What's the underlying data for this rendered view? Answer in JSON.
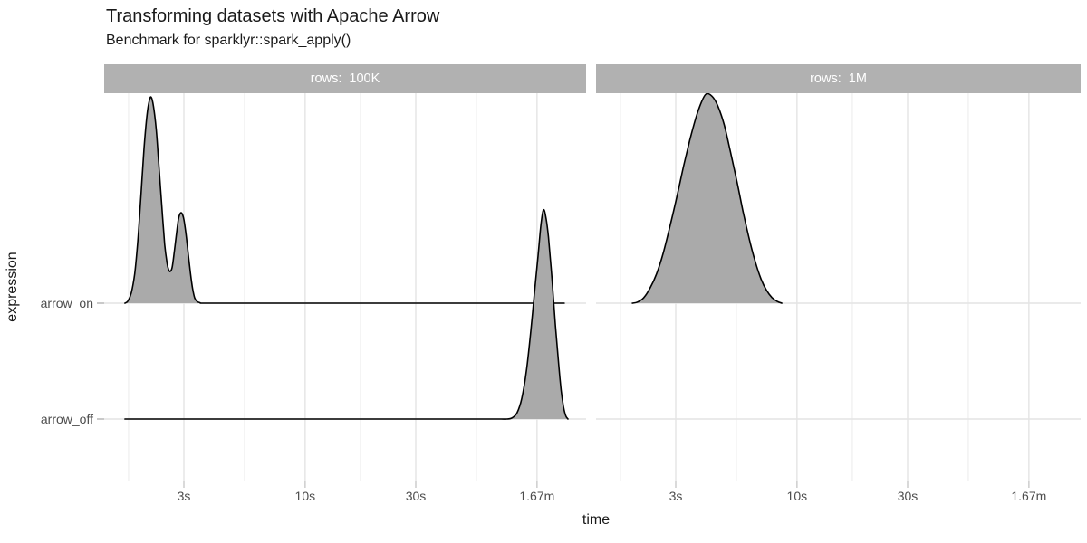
{
  "chart_data": {
    "type": "area",
    "variant": "faceted-density-ridgeline",
    "title": "Transforming datasets with Apache Arrow",
    "subtitle": "Benchmark for sparklyr::spark_apply()",
    "xlabel": "time",
    "ylabel": "expression",
    "x_scale": "log10",
    "x_unit": "seconds",
    "x_domain_seconds": [
      1.36,
      160
    ],
    "grid": "on",
    "legend": "none",
    "x_ticks": [
      {
        "label": "3s",
        "t": 3
      },
      {
        "label": "10s",
        "t": 10
      },
      {
        "label": "30s",
        "t": 30
      },
      {
        "label": "1.67m",
        "t": 100
      }
    ],
    "x_minor_ticks_seconds": [
      1.732,
      5.477,
      17.32,
      54.77
    ],
    "y_rows": [
      {
        "label": "arrow_on"
      },
      {
        "label": "arrow_off"
      }
    ],
    "facets": [
      {
        "strip": "rows:  100K",
        "series": [
          {
            "row": "arrow_on",
            "points": [
              [
                1.67,
                0
              ],
              [
                1.72,
                0.01
              ],
              [
                1.78,
                0.05
              ],
              [
                1.84,
                0.14
              ],
              [
                1.9,
                0.3
              ],
              [
                1.96,
                0.52
              ],
              [
                2.02,
                0.74
              ],
              [
                2.08,
                0.9
              ],
              [
                2.13,
                0.97
              ],
              [
                2.17,
                0.985
              ],
              [
                2.22,
                0.94
              ],
              [
                2.28,
                0.83
              ],
              [
                2.34,
                0.66
              ],
              [
                2.41,
                0.46
              ],
              [
                2.48,
                0.28
              ],
              [
                2.54,
                0.19
              ],
              [
                2.58,
                0.16
              ],
              [
                2.62,
                0.152
              ],
              [
                2.67,
                0.17
              ],
              [
                2.72,
                0.235
              ],
              [
                2.78,
                0.32
              ],
              [
                2.84,
                0.4
              ],
              [
                2.89,
                0.428
              ],
              [
                2.94,
                0.43
              ],
              [
                3.0,
                0.4
              ],
              [
                3.06,
                0.335
              ],
              [
                3.13,
                0.24
              ],
              [
                3.2,
                0.145
              ],
              [
                3.27,
                0.07
              ],
              [
                3.34,
                0.025
              ],
              [
                3.42,
                0.008
              ],
              [
                3.52,
                0.002
              ],
              [
                3.65,
                0
              ],
              [
                5,
                0
              ],
              [
                10,
                0
              ],
              [
                20,
                0
              ],
              [
                40,
                0
              ],
              [
                70,
                0
              ],
              [
                100,
                0
              ],
              [
                131,
                0
              ]
            ]
          },
          {
            "row": "arrow_off",
            "points": [
              [
                1.67,
                0
              ],
              [
                3,
                0
              ],
              [
                6,
                0
              ],
              [
                12,
                0
              ],
              [
                25,
                0
              ],
              [
                45,
                0
              ],
              [
                62,
                0
              ],
              [
                70,
                0
              ],
              [
                74,
                0
              ],
              [
                78,
                0.005
              ],
              [
                82,
                0.03
              ],
              [
                86,
                0.1
              ],
              [
                90,
                0.23
              ],
              [
                94,
                0.42
              ],
              [
                98,
                0.63
              ],
              [
                101,
                0.78
              ],
              [
                104,
                0.93
              ],
              [
                106.5,
                1.0
              ],
              [
                109,
                0.97
              ],
              [
                112,
                0.87
              ],
              [
                116,
                0.67
              ],
              [
                120,
                0.45
              ],
              [
                124,
                0.26
              ],
              [
                127,
                0.14
              ],
              [
                130,
                0.06
              ],
              [
                133,
                0.015
              ],
              [
                136,
                0
              ]
            ]
          }
        ]
      },
      {
        "strip": "rows:  1M",
        "series": [
          {
            "row": "arrow_on",
            "points": [
              [
                1.95,
                0
              ],
              [
                2.05,
                0.005
              ],
              [
                2.18,
                0.025
              ],
              [
                2.32,
                0.07
              ],
              [
                2.48,
                0.14
              ],
              [
                2.65,
                0.24
              ],
              [
                2.85,
                0.38
              ],
              [
                3.05,
                0.52
              ],
              [
                3.25,
                0.66
              ],
              [
                3.45,
                0.78
              ],
              [
                3.65,
                0.88
              ],
              [
                3.85,
                0.955
              ],
              [
                4.05,
                1.0
              ],
              [
                4.3,
                0.99
              ],
              [
                4.55,
                0.945
              ],
              [
                4.85,
                0.855
              ],
              [
                5.15,
                0.73
              ],
              [
                5.5,
                0.585
              ],
              [
                5.85,
                0.44
              ],
              [
                6.2,
                0.315
              ],
              [
                6.6,
                0.2
              ],
              [
                7.0,
                0.115
              ],
              [
                7.4,
                0.06
              ],
              [
                7.8,
                0.027
              ],
              [
                8.2,
                0.009
              ],
              [
                8.6,
                0
              ]
            ]
          }
        ]
      }
    ],
    "style": {
      "ridge_fill": "#aaaaaa",
      "ridge_stroke": "#000000",
      "strip_background": "#b1b1b1",
      "strip_text": "#ffffff",
      "grid_major": "#e4e4e4",
      "grid_minor": "#ebebeb",
      "tick_mark": "#c9c9c9",
      "axis_text": "#4d4d4d",
      "axis_title": "#1a1a1a",
      "title_color": "#1a1a1a",
      "background": "#ffffff"
    }
  }
}
